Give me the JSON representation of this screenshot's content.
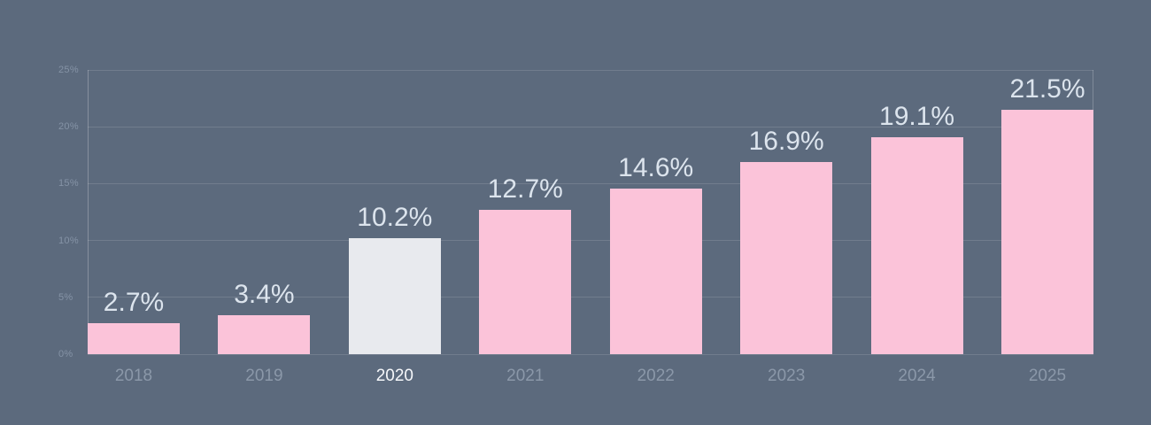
{
  "chart_data": {
    "type": "bar",
    "title": "",
    "categories": [
      "2018",
      "2019",
      "2020",
      "2021",
      "2022",
      "2023",
      "2024",
      "2025"
    ],
    "values": [
      2.7,
      3.4,
      10.2,
      12.7,
      14.6,
      16.9,
      19.1,
      21.5
    ],
    "value_labels": [
      "2.7%",
      "3.4%",
      "10.2%",
      "12.7%",
      "14.6%",
      "16.9%",
      "19.1%",
      "21.5%"
    ],
    "highlighted_category": "2020",
    "xlabel": "",
    "ylabel": "",
    "ylim": [
      0,
      25
    ],
    "ytick_values": [
      0,
      5,
      10,
      15,
      20,
      25
    ],
    "ytick_labels": [
      "0%",
      "5%",
      "10%",
      "15%",
      "20%",
      "25%"
    ],
    "grid": "horizontal",
    "legend": "none",
    "colors": {
      "background": "#5c6a7d",
      "bar": "#fbc3d9",
      "bar_highlight": "#e8eaee",
      "value_label": "#dce4ed",
      "x_label": "#8b98a9",
      "x_label_highlight": "#f5f7fa",
      "y_label": "#8593a6"
    }
  }
}
